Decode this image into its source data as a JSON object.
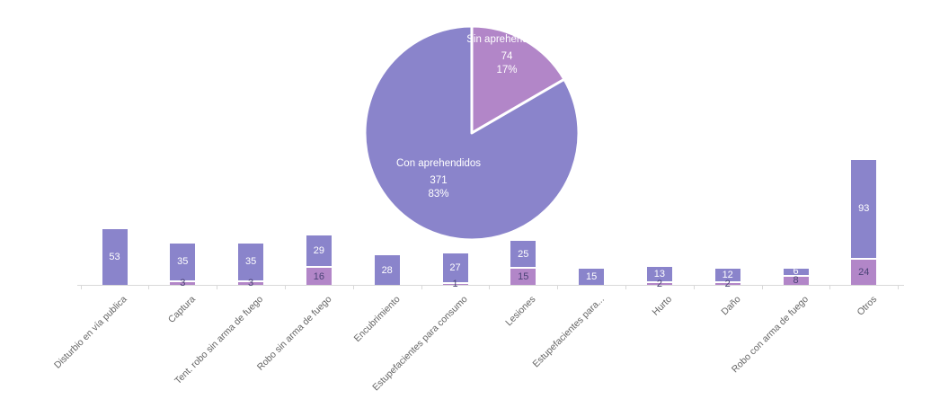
{
  "chart_data": [
    {
      "type": "pie",
      "title": "",
      "legend": "none",
      "label_color": "#ffffff",
      "slices": [
        {
          "label": "Sin aprehendidos",
          "value": 74,
          "pct": "17%",
          "color": "#b286c8"
        },
        {
          "label": "Con aprehendidos",
          "value": 371,
          "pct": "83%",
          "color": "#8a84cb"
        }
      ]
    },
    {
      "type": "bar",
      "stacked": true,
      "title": "",
      "legend": "none",
      "grid": "off",
      "ylim": [
        0,
        120
      ],
      "xlabel": "",
      "ylabel": "",
      "axis_color": "#d9d9d9",
      "category_label_color": "#666666",
      "categories": [
        "Disturbio en vía publica",
        "Captura",
        "Tent. robo sin arma de fuego",
        "Robo sin arma de fuego",
        "Encubrimiento",
        "Estupefacientes para consumo",
        "Lesiones",
        "Estupefacientes para...",
        "Hurto",
        "Daño",
        "Robo con arma de fuego",
        "Otros"
      ],
      "series": [
        {
          "name": "Con aprehendidos",
          "color": "#8a84cb",
          "label_color": "#ffffff",
          "values": [
            53,
            35,
            35,
            29,
            28,
            27,
            25,
            15,
            13,
            12,
            6,
            93
          ]
        },
        {
          "name": "Sin aprehendidos",
          "color": "#b286c8",
          "label_color": "#4a4376",
          "values": [
            0,
            3,
            3,
            16,
            0,
            1,
            15,
            0,
            2,
            2,
            8,
            24
          ]
        }
      ]
    }
  ]
}
